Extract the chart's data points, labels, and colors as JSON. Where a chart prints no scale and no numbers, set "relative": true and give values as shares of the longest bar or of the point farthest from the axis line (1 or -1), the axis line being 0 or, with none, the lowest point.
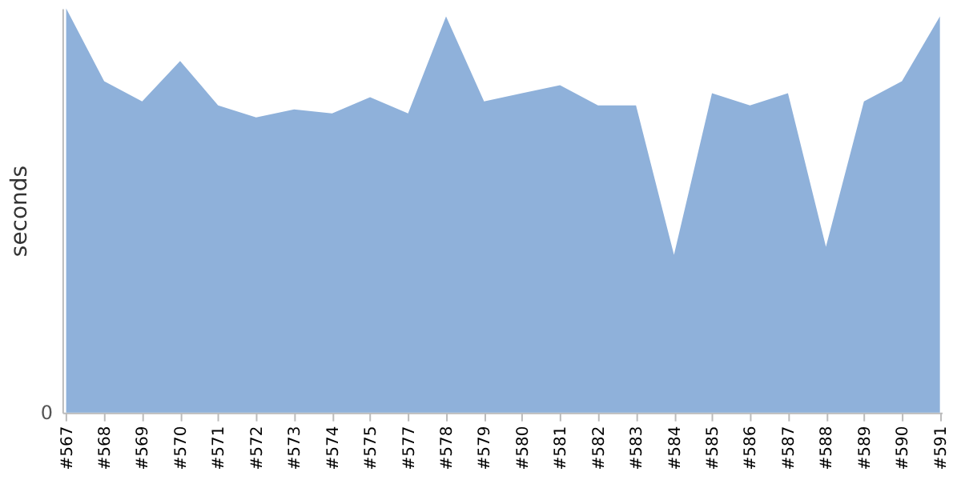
{
  "chart_data": {
    "type": "area",
    "relative": true,
    "ylabel": "seconds",
    "annotations": [
      "0"
    ],
    "categories": [
      "#567",
      "#568",
      "#569",
      "#570",
      "#571",
      "#572",
      "#573",
      "#574",
      "#575",
      "#577",
      "#578",
      "#579",
      "#580",
      "#581",
      "#582",
      "#583",
      "#584",
      "#585",
      "#586",
      "#587",
      "#588",
      "#589",
      "#590",
      "#591"
    ],
    "series": [
      {
        "color": "#8fb1da",
        "values": [
          1.0,
          0.82,
          0.77,
          0.87,
          0.76,
          0.73,
          0.75,
          0.74,
          0.78,
          0.74,
          0.98,
          0.77,
          0.79,
          0.81,
          0.76,
          0.76,
          0.39,
          0.79,
          0.76,
          0.79,
          0.41,
          0.77,
          0.82,
          0.98
        ]
      }
    ],
    "grid": false
  }
}
